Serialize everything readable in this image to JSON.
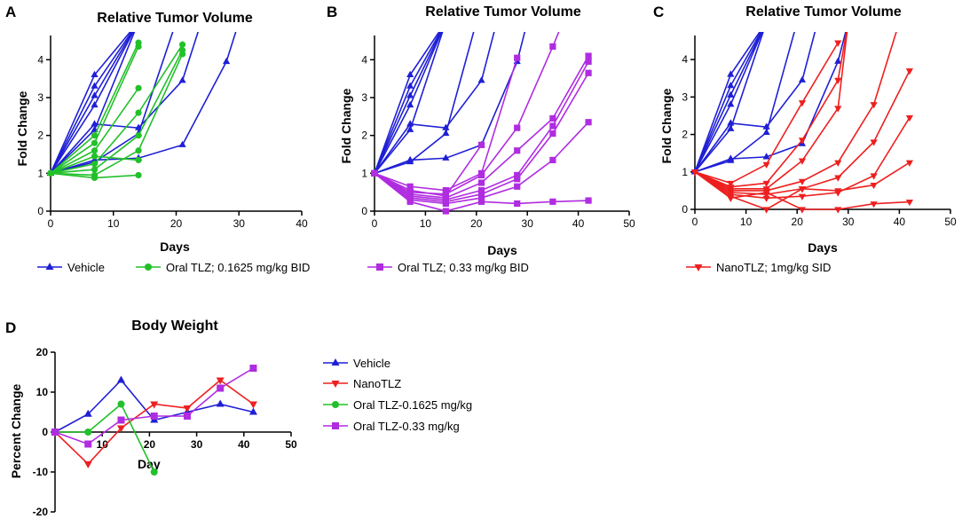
{
  "colors": {
    "vehicle": "#1f1fd6",
    "oral_low": "#22c02a",
    "oral_high": "#b02ce0",
    "nano": "#ee1f1f"
  },
  "chart_data": [
    {
      "id": "A",
      "type": "line",
      "panel_label": "A",
      "title": "Relative Tumor Volume",
      "xlabel": "Days",
      "ylabel": "Fold Change",
      "xlim": [
        0,
        40
      ],
      "ylim": [
        0,
        4.5
      ],
      "xticks": [
        0,
        10,
        20,
        30,
        40
      ],
      "yticks": [
        0,
        1,
        2,
        3,
        4
      ],
      "series": [
        {
          "group": "vehicle",
          "marker": "triangle-up",
          "x": [
            0,
            7,
            14
          ],
          "y": [
            1,
            3.6,
            5
          ]
        },
        {
          "group": "vehicle",
          "marker": "triangle-up",
          "x": [
            0,
            7,
            14
          ],
          "y": [
            1,
            3.3,
            5
          ]
        },
        {
          "group": "vehicle",
          "marker": "triangle-up",
          "x": [
            0,
            7,
            14
          ],
          "y": [
            1,
            3.05,
            5
          ]
        },
        {
          "group": "vehicle",
          "marker": "triangle-up",
          "x": [
            0,
            7,
            14
          ],
          "y": [
            1,
            2.8,
            5
          ]
        },
        {
          "group": "vehicle",
          "marker": "triangle-up",
          "x": [
            0,
            7,
            14
          ],
          "y": [
            1,
            2.15,
            5
          ]
        },
        {
          "group": "vehicle",
          "marker": "triangle-up",
          "x": [
            0,
            7,
            14,
            21,
            24
          ],
          "y": [
            1,
            2.3,
            2.2,
            3.45,
            5
          ]
        },
        {
          "group": "vehicle",
          "marker": "triangle-up",
          "x": [
            0,
            7,
            14,
            21,
            28,
            30
          ],
          "y": [
            1,
            1.35,
            1.4,
            1.75,
            3.95,
            5
          ]
        },
        {
          "group": "vehicle",
          "marker": "triangle-up",
          "x": [
            0,
            7,
            14,
            20
          ],
          "y": [
            1,
            1.3,
            2.05,
            5
          ]
        },
        {
          "group": "oral_low",
          "marker": "circle",
          "x": [
            0,
            7,
            14
          ],
          "y": [
            1,
            2.0,
            4.45
          ]
        },
        {
          "group": "oral_low",
          "marker": "circle",
          "x": [
            0,
            7,
            14
          ],
          "y": [
            1,
            1.8,
            4.35
          ]
        },
        {
          "group": "oral_low",
          "marker": "circle",
          "x": [
            0,
            7,
            14
          ],
          "y": [
            1,
            1.6,
            3.25
          ]
        },
        {
          "group": "oral_low",
          "marker": "circle",
          "x": [
            0,
            7,
            14,
            21
          ],
          "y": [
            1,
            1.25,
            2.6,
            4.4
          ]
        },
        {
          "group": "oral_low",
          "marker": "circle",
          "x": [
            0,
            7,
            14,
            21
          ],
          "y": [
            1,
            1.1,
            2.0,
            4.25
          ]
        },
        {
          "group": "oral_low",
          "marker": "circle",
          "x": [
            0,
            7,
            14,
            21
          ],
          "y": [
            1,
            0.95,
            1.6,
            4.15
          ]
        },
        {
          "group": "oral_low",
          "marker": "circle",
          "x": [
            0,
            7,
            14
          ],
          "y": [
            1,
            0.88,
            0.95
          ]
        },
        {
          "group": "oral_low",
          "marker": "circle",
          "x": [
            0,
            7,
            14
          ],
          "y": [
            1,
            1.45,
            1.35
          ]
        }
      ]
    },
    {
      "id": "B",
      "type": "line",
      "panel_label": "B",
      "title": "Relative Tumor Volume",
      "xlabel": "Days",
      "ylabel": "Fold Change",
      "xlim": [
        0,
        50
      ],
      "ylim": [
        0,
        4.5
      ],
      "xticks": [
        0,
        10,
        20,
        30,
        40,
        50
      ],
      "yticks": [
        0,
        1,
        2,
        3,
        4
      ],
      "series": [
        {
          "group": "vehicle",
          "marker": "triangle-up",
          "x": [
            0,
            7,
            14
          ],
          "y": [
            1,
            3.6,
            5
          ]
        },
        {
          "group": "vehicle",
          "marker": "triangle-up",
          "x": [
            0,
            7,
            14
          ],
          "y": [
            1,
            3.3,
            5
          ]
        },
        {
          "group": "vehicle",
          "marker": "triangle-up",
          "x": [
            0,
            7,
            14
          ],
          "y": [
            1,
            3.05,
            5
          ]
        },
        {
          "group": "vehicle",
          "marker": "triangle-up",
          "x": [
            0,
            7,
            14
          ],
          "y": [
            1,
            2.8,
            5
          ]
        },
        {
          "group": "vehicle",
          "marker": "triangle-up",
          "x": [
            0,
            7,
            14
          ],
          "y": [
            1,
            2.15,
            5
          ]
        },
        {
          "group": "vehicle",
          "marker": "triangle-up",
          "x": [
            0,
            7,
            14,
            21,
            24
          ],
          "y": [
            1,
            2.3,
            2.2,
            3.45,
            5
          ]
        },
        {
          "group": "vehicle",
          "marker": "triangle-up",
          "x": [
            0,
            7,
            14,
            21,
            28,
            30
          ],
          "y": [
            1,
            1.35,
            1.4,
            1.75,
            3.95,
            5
          ]
        },
        {
          "group": "vehicle",
          "marker": "triangle-up",
          "x": [
            0,
            7,
            14,
            20
          ],
          "y": [
            1,
            1.3,
            2.05,
            5
          ]
        },
        {
          "group": "oral_high",
          "marker": "square",
          "x": [
            0,
            7,
            14,
            21,
            28
          ],
          "y": [
            1,
            0.65,
            0.55,
            1.0,
            4.05
          ]
        },
        {
          "group": "oral_high",
          "marker": "square",
          "x": [
            0,
            7,
            14,
            21,
            28,
            35,
            37
          ],
          "y": [
            1,
            0.5,
            0.45,
            0.95,
            2.2,
            4.35,
            5
          ]
        },
        {
          "group": "oral_high",
          "marker": "square",
          "x": [
            0,
            7,
            14,
            21,
            28,
            35,
            42
          ],
          "y": [
            1,
            0.45,
            0.35,
            0.75,
            1.6,
            2.45,
            4.1
          ]
        },
        {
          "group": "oral_high",
          "marker": "square",
          "x": [
            0,
            7,
            14,
            21,
            28,
            35,
            42
          ],
          "y": [
            1,
            0.4,
            0.3,
            0.55,
            0.95,
            2.25,
            3.95
          ]
        },
        {
          "group": "oral_high",
          "marker": "square",
          "x": [
            0,
            7,
            14,
            21,
            28,
            35,
            42
          ],
          "y": [
            1,
            0.35,
            0.25,
            0.45,
            0.85,
            2.05,
            3.65
          ]
        },
        {
          "group": "oral_high",
          "marker": "square",
          "x": [
            0,
            7,
            14,
            21,
            28,
            35,
            42
          ],
          "y": [
            1,
            0.3,
            0.2,
            0.35,
            0.65,
            1.35,
            2.35
          ]
        },
        {
          "group": "oral_high",
          "marker": "square",
          "x": [
            0,
            7,
            14,
            21,
            28,
            35,
            42
          ],
          "y": [
            1,
            0.25,
            0.0,
            0.25,
            0.2,
            0.25,
            0.28
          ]
        },
        {
          "group": "oral_high",
          "marker": "square",
          "x": [
            0,
            7,
            14,
            21
          ],
          "y": [
            1,
            0.55,
            0.4,
            1.75
          ]
        }
      ]
    },
    {
      "id": "C",
      "type": "line",
      "panel_label": "C",
      "title": "Relative Tumor Volume",
      "xlabel": "Days",
      "ylabel": "Fold Change",
      "xlim": [
        0,
        50
      ],
      "ylim": [
        0,
        4.5
      ],
      "xticks": [
        0,
        10,
        20,
        30,
        40,
        50
      ],
      "yticks": [
        0,
        1,
        2,
        3,
        4
      ],
      "series": [
        {
          "group": "vehicle",
          "marker": "triangle-up",
          "x": [
            0,
            7,
            14
          ],
          "y": [
            1,
            3.6,
            5
          ]
        },
        {
          "group": "vehicle",
          "marker": "triangle-up",
          "x": [
            0,
            7,
            14
          ],
          "y": [
            1,
            3.3,
            5
          ]
        },
        {
          "group": "vehicle",
          "marker": "triangle-up",
          "x": [
            0,
            7,
            14
          ],
          "y": [
            1,
            3.05,
            5
          ]
        },
        {
          "group": "vehicle",
          "marker": "triangle-up",
          "x": [
            0,
            7,
            14
          ],
          "y": [
            1,
            2.8,
            5
          ]
        },
        {
          "group": "vehicle",
          "marker": "triangle-up",
          "x": [
            0,
            7,
            14
          ],
          "y": [
            1,
            2.15,
            5
          ]
        },
        {
          "group": "vehicle",
          "marker": "triangle-up",
          "x": [
            0,
            7,
            14,
            21,
            24
          ],
          "y": [
            1,
            2.3,
            2.2,
            3.45,
            5
          ]
        },
        {
          "group": "vehicle",
          "marker": "triangle-up",
          "x": [
            0,
            7,
            14,
            21,
            28,
            30
          ],
          "y": [
            1,
            1.35,
            1.4,
            1.75,
            3.95,
            5
          ]
        },
        {
          "group": "vehicle",
          "marker": "triangle-up",
          "x": [
            0,
            7,
            14,
            20
          ],
          "y": [
            1,
            1.3,
            2.05,
            5
          ]
        },
        {
          "group": "nano",
          "marker": "triangle-down",
          "x": [
            0,
            7,
            14,
            21,
            28
          ],
          "y": [
            1,
            0.7,
            1.2,
            2.85,
            4.45
          ]
        },
        {
          "group": "nano",
          "marker": "triangle-down",
          "x": [
            0,
            7,
            14,
            21,
            28,
            30
          ],
          "y": [
            1,
            0.6,
            0.7,
            1.85,
            3.45,
            5
          ]
        },
        {
          "group": "nano",
          "marker": "triangle-down",
          "x": [
            0,
            7,
            14,
            21,
            28,
            30
          ],
          "y": [
            1,
            0.55,
            0.55,
            1.3,
            2.7,
            5
          ]
        },
        {
          "group": "nano",
          "marker": "triangle-down",
          "x": [
            0,
            7,
            14,
            21,
            28,
            35,
            40
          ],
          "y": [
            1,
            0.5,
            0.5,
            0.75,
            1.25,
            2.8,
            5
          ]
        },
        {
          "group": "nano",
          "marker": "triangle-down",
          "x": [
            0,
            7,
            14,
            21,
            28,
            35,
            42
          ],
          "y": [
            1,
            0.45,
            0.4,
            0.55,
            0.85,
            1.8,
            3.7
          ]
        },
        {
          "group": "nano",
          "marker": "triangle-down",
          "x": [
            0,
            7,
            14,
            21,
            28,
            35,
            42
          ],
          "y": [
            1,
            0.4,
            0.3,
            0.35,
            0.45,
            0.9,
            2.45
          ]
        },
        {
          "group": "nano",
          "marker": "triangle-down",
          "x": [
            0,
            7,
            14,
            21,
            28,
            35,
            42
          ],
          "y": [
            1,
            0.35,
            0.0,
            0.55,
            0.5,
            0.65,
            1.25
          ]
        },
        {
          "group": "nano",
          "marker": "triangle-down",
          "x": [
            0,
            7,
            14,
            21,
            28,
            35,
            42
          ],
          "y": [
            1,
            0.3,
            0.45,
            0.0,
            0.0,
            0.15,
            0.2
          ]
        }
      ]
    },
    {
      "id": "D",
      "type": "line",
      "panel_label": "D",
      "title": "Body Weight",
      "xlabel": "Day",
      "ylabel": "Percent Change",
      "xlim": [
        0,
        50
      ],
      "ylim": [
        -20,
        20
      ],
      "xticks": [
        10,
        20,
        30,
        40,
        50
      ],
      "yticks": [
        -20,
        -10,
        0,
        10,
        20
      ],
      "series": [
        {
          "group": "vehicle",
          "name": "Vehicle",
          "marker": "triangle-up",
          "x": [
            0,
            7,
            14,
            21,
            28,
            35,
            42
          ],
          "y": [
            0,
            4.5,
            13,
            3,
            5,
            7,
            5
          ]
        },
        {
          "group": "nano",
          "name": "NanoTLZ",
          "marker": "triangle-down",
          "x": [
            0,
            7,
            14,
            21,
            28,
            35,
            42
          ],
          "y": [
            0,
            -8,
            1,
            7,
            6,
            13,
            7
          ]
        },
        {
          "group": "oral_low",
          "name": "Oral TLZ-0.1625 mg/kg",
          "marker": "circle",
          "x": [
            0,
            7,
            14,
            21
          ],
          "y": [
            0,
            0,
            7,
            -10
          ]
        },
        {
          "group": "oral_high",
          "name": "Oral TLZ-0.33 mg/kg",
          "marker": "square",
          "x": [
            0,
            7,
            14,
            21,
            28,
            35,
            42
          ],
          "y": [
            0,
            -3,
            3,
            4,
            4,
            11,
            16
          ]
        }
      ]
    }
  ],
  "legend_top": [
    {
      "group": "vehicle",
      "marker": "triangle-up",
      "label": "Vehicle"
    },
    {
      "group": "oral_low",
      "marker": "circle",
      "label": "Oral TLZ; 0.1625 mg/kg BID"
    },
    {
      "group": "oral_high",
      "marker": "square",
      "label": "Oral TLZ; 0.33 mg/kg BID"
    }
  ],
  "legend_c": [
    {
      "group": "nano",
      "marker": "triangle-down",
      "label": "NanoTLZ; 1mg/kg SID"
    }
  ],
  "legend_d": [
    {
      "group": "vehicle",
      "marker": "triangle-up",
      "label": "Vehicle"
    },
    {
      "group": "nano",
      "marker": "triangle-down",
      "label": "NanoTLZ"
    },
    {
      "group": "oral_low",
      "marker": "circle",
      "label": "Oral TLZ-0.1625 mg/kg"
    },
    {
      "group": "oral_high",
      "marker": "square",
      "label": "Oral TLZ-0.33 mg/kg"
    }
  ]
}
